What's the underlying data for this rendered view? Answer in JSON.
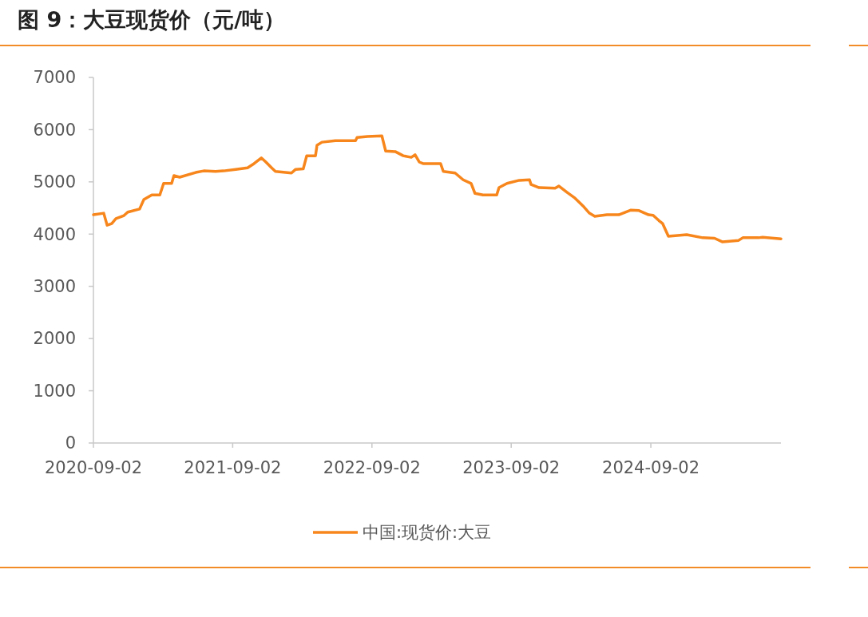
{
  "chart_data": {
    "type": "line",
    "title": "图 9：大豆现货价（元/吨）",
    "xlim": [
      "2020-09-02",
      "2025-08-09"
    ],
    "xticks": [
      "2020-09-02",
      "2021-09-02",
      "2022-09-02",
      "2023-09-02",
      "2024-09-02"
    ],
    "ylim": [
      0,
      7000
    ],
    "yticks": [
      0,
      1000,
      2000,
      3000,
      4000,
      5000,
      6000,
      7000
    ],
    "grid": false,
    "legend": "bottom",
    "marker": "none",
    "line_style": "solid",
    "series": [
      {
        "name": "中国:现货价:大豆",
        "color": "#f7861c",
        "x": [
          "2020-09-02",
          "2020-09-29",
          "2020-10-08",
          "2020-10-20",
          "2020-10-31",
          "2020-11-21",
          "2020-12-01",
          "2021-01-01",
          "2021-01-12",
          "2021-02-02",
          "2021-02-23",
          "2021-03-05",
          "2021-03-26",
          "2021-04-01",
          "2021-04-16",
          "2021-05-28",
          "2021-06-18",
          "2021-07-19",
          "2021-08-09",
          "2021-09-10",
          "2021-10-11",
          "2021-10-28",
          "2021-11-16",
          "2021-11-28",
          "2021-12-13",
          "2021-12-23",
          "2022-02-03",
          "2022-02-14",
          "2022-03-06",
          "2022-03-15",
          "2022-04-07",
          "2022-04-11",
          "2022-04-24",
          "2022-05-29",
          "2022-07-21",
          "2022-07-25",
          "2022-08-21",
          "2022-09-28",
          "2022-10-08",
          "2022-11-02",
          "2022-11-23",
          "2022-12-14",
          "2022-12-24",
          "2023-01-04",
          "2023-01-14",
          "2023-03-01",
          "2023-03-08",
          "2023-04-08",
          "2023-04-29",
          "2023-05-20",
          "2023-05-30",
          "2023-06-20",
          "2023-07-26",
          "2023-08-01",
          "2023-08-22",
          "2023-09-23",
          "2023-10-20",
          "2023-10-24",
          "2023-11-14",
          "2023-12-26",
          "2024-01-05",
          "2024-01-26",
          "2024-02-16",
          "2024-03-08",
          "2024-03-25",
          "2024-04-08",
          "2024-05-10",
          "2024-06-10",
          "2024-07-12",
          "2024-08-02",
          "2024-08-27",
          "2024-09-08",
          "2024-09-23",
          "2024-10-03",
          "2024-10-18",
          "2024-12-05",
          "2025-01-16",
          "2025-02-16",
          "2025-03-09",
          "2025-04-20",
          "2025-05-01",
          "2025-06-11",
          "2025-06-22",
          "2025-08-09"
        ],
        "values": [
          4370,
          4400,
          4170,
          4200,
          4295,
          4355,
          4420,
          4480,
          4660,
          4750,
          4750,
          4970,
          4970,
          5120,
          5090,
          5180,
          5210,
          5200,
          5210,
          5240,
          5270,
          5350,
          5460,
          5380,
          5270,
          5200,
          5170,
          5240,
          5250,
          5500,
          5500,
          5700,
          5760,
          5790,
          5790,
          5850,
          5870,
          5880,
          5590,
          5580,
          5500,
          5470,
          5520,
          5380,
          5350,
          5350,
          5200,
          5170,
          5040,
          4970,
          4780,
          4750,
          4750,
          4890,
          4970,
          5030,
          5040,
          4950,
          4890,
          4880,
          4920,
          4800,
          4690,
          4540,
          4400,
          4340,
          4370,
          4370,
          4460,
          4450,
          4370,
          4360,
          4260,
          4200,
          3960,
          3990,
          3930,
          3920,
          3850,
          3880,
          3930,
          3930,
          3940,
          3910
        ]
      }
    ]
  }
}
